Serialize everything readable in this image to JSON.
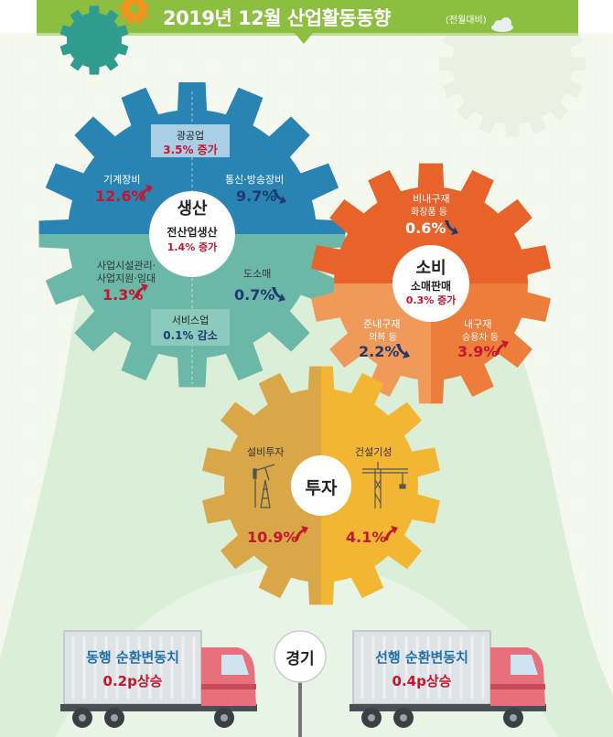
{
  "header": {
    "title": "2019년 12월 산업활동동향",
    "subtitle": "(전월대비)"
  },
  "production": {
    "title": "생산",
    "total_label": "전산업생산",
    "total_value": "1.4% 증가",
    "mining": {
      "label": "광공업",
      "value": "3.5% 증가"
    },
    "machinery": {
      "label": "기계장비",
      "value": "12.6%"
    },
    "telecom": {
      "label": "통신·방송장비",
      "value": "9.7%"
    },
    "business": {
      "label1": "사업시설관리·",
      "label2": "사업지원·임대",
      "value": "1.3%"
    },
    "wholesale": {
      "label": "도소매",
      "value": "0.7%"
    },
    "services": {
      "label": "서비스업",
      "value": "0.1% 감소"
    }
  },
  "consumption": {
    "title": "소비",
    "total_label": "소매판매",
    "total_value": "0.3% 증가",
    "nondurable": {
      "label": "비내구재",
      "sub": "화장품 등",
      "value": "0.6%"
    },
    "semidurable": {
      "label": "준내구재",
      "sub": "의복 등",
      "value": "2.2%"
    },
    "durable": {
      "label": "내구재",
      "sub": "승용차 등",
      "value": "3.9%"
    }
  },
  "investment": {
    "title": "투자",
    "facility": {
      "label": "설비투자",
      "value": "10.9%"
    },
    "construction": {
      "label": "건설기성",
      "value": "4.1%"
    }
  },
  "economy": {
    "title": "경기",
    "coincident": {
      "label": "동행 순환변동치",
      "value": "0.2p상승"
    },
    "leading": {
      "label": "선행 순환변동치",
      "value": "0.4p상승"
    }
  },
  "colors": {
    "header_green": "#8cbf3f",
    "production_blue": "#2e8fc0",
    "production_teal": "#6bb8a8",
    "consumption_orange": "#e8632a",
    "consumption_light": "#f09a5a",
    "investment_tan": "#d9a648",
    "investment_yellow": "#f2b632",
    "increase_red": "#c3162f",
    "decrease_navy": "#1e3a6e"
  },
  "icons": [
    "gear-icon",
    "cloud-icon",
    "arrow-up-icon",
    "arrow-down-icon",
    "oil-pump-icon",
    "crane-icon",
    "truck-icon",
    "signpost-icon"
  ]
}
